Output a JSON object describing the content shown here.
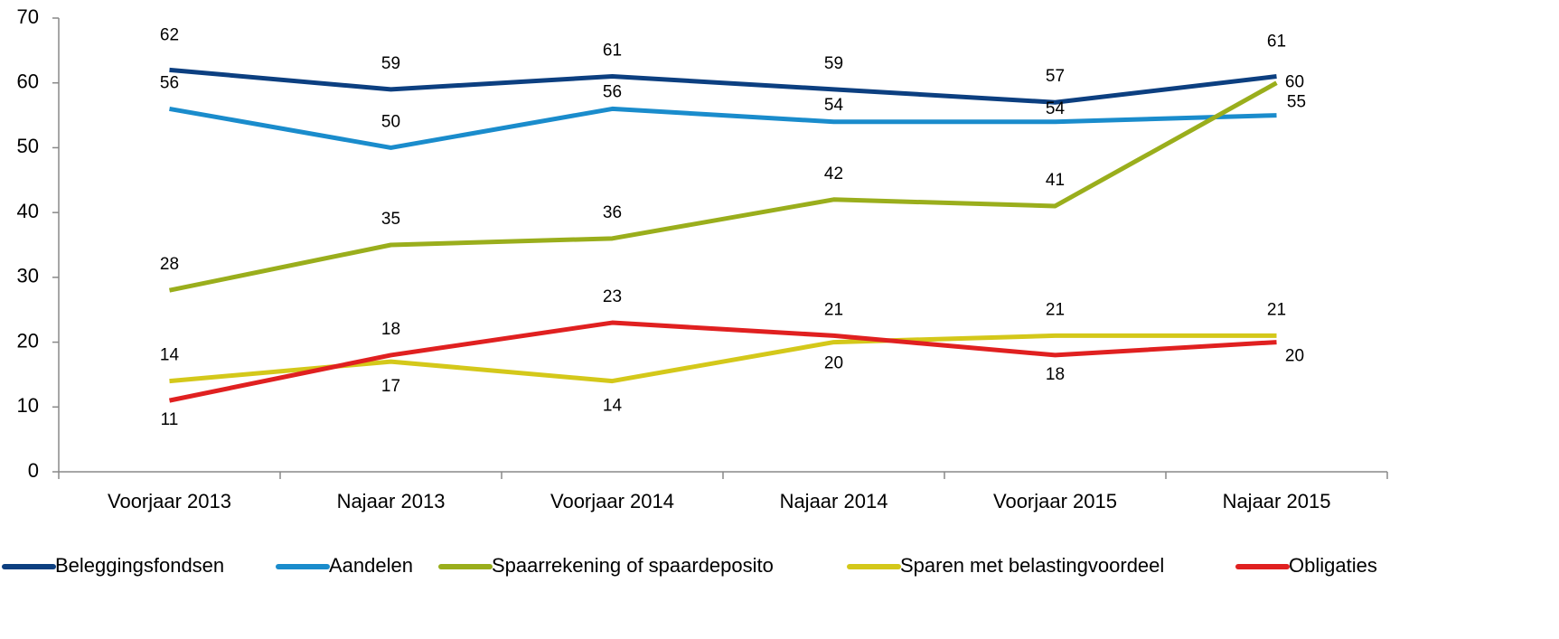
{
  "chart_data": {
    "type": "line",
    "categories": [
      "Voorjaar 2013",
      "Najaar 2013",
      "Voorjaar 2014",
      "Najaar 2014",
      "Voorjaar 2015",
      "Najaar 2015"
    ],
    "series": [
      {
        "name": "Beleggingsfondsen",
        "color": "#0c3f80",
        "values": [
          62,
          59,
          61,
          59,
          57,
          61
        ]
      },
      {
        "name": "Aandelen",
        "color": "#1a8ccc",
        "values": [
          56,
          50,
          56,
          54,
          54,
          55
        ]
      },
      {
        "name": "Spaarrekening of spaardeposito",
        "color": "#9aae1c",
        "values": [
          28,
          35,
          36,
          42,
          41,
          60
        ]
      },
      {
        "name": "Sparen met belastingvoordeel",
        "color": "#d4c81a",
        "values": [
          14,
          17,
          14,
          20,
          21,
          21
        ]
      },
      {
        "name": "Obligaties",
        "color": "#e02020",
        "values": [
          11,
          18,
          23,
          21,
          18,
          20
        ]
      }
    ],
    "ylim": [
      0,
      70
    ],
    "yticks": [
      0,
      10,
      20,
      30,
      40,
      50,
      60,
      70
    ],
    "legend": "bottom"
  }
}
